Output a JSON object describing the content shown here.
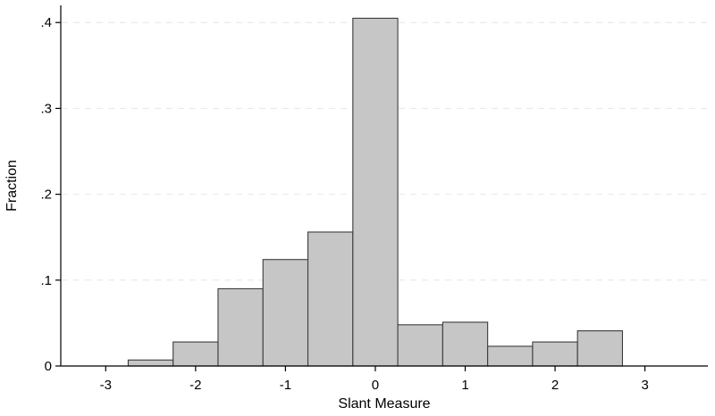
{
  "chart_data": {
    "type": "bar",
    "title": "",
    "xlabel": "Slant Measure",
    "ylabel": "Fraction",
    "xlim": [
      -3.5,
      3.7
    ],
    "ylim": [
      0,
      0.42
    ],
    "x_ticks": [
      -3,
      -2,
      -1,
      0,
      1,
      2,
      3
    ],
    "x_tick_labels": [
      "-3",
      "-2",
      "-1",
      "0",
      "1",
      "2",
      "3"
    ],
    "y_ticks": [
      0,
      0.1,
      0.2,
      0.3,
      0.4
    ],
    "y_tick_labels": [
      "0",
      ".1",
      ".2",
      ".3",
      ".4"
    ],
    "grid": true,
    "bin_width": 0.5,
    "bins": [
      {
        "x0": -2.75,
        "x1": -2.25,
        "value": 0.007
      },
      {
        "x0": -2.25,
        "x1": -1.75,
        "value": 0.028
      },
      {
        "x0": -1.75,
        "x1": -1.25,
        "value": 0.09
      },
      {
        "x0": -1.25,
        "x1": -0.75,
        "value": 0.124
      },
      {
        "x0": -0.75,
        "x1": -0.25,
        "value": 0.156
      },
      {
        "x0": -0.25,
        "x1": 0.25,
        "value": 0.405
      },
      {
        "x0": 0.25,
        "x1": 0.75,
        "value": 0.048
      },
      {
        "x0": 0.75,
        "x1": 1.25,
        "value": 0.051
      },
      {
        "x0": 1.25,
        "x1": 1.75,
        "value": 0.023
      },
      {
        "x0": 1.75,
        "x1": 2.25,
        "value": 0.028
      },
      {
        "x0": 2.25,
        "x1": 2.75,
        "value": 0.041
      }
    ],
    "colors": {
      "bar_fill": "#c6c6c6",
      "bar_stroke": "#3c3c3c",
      "grid": "#e6e6e6"
    }
  }
}
